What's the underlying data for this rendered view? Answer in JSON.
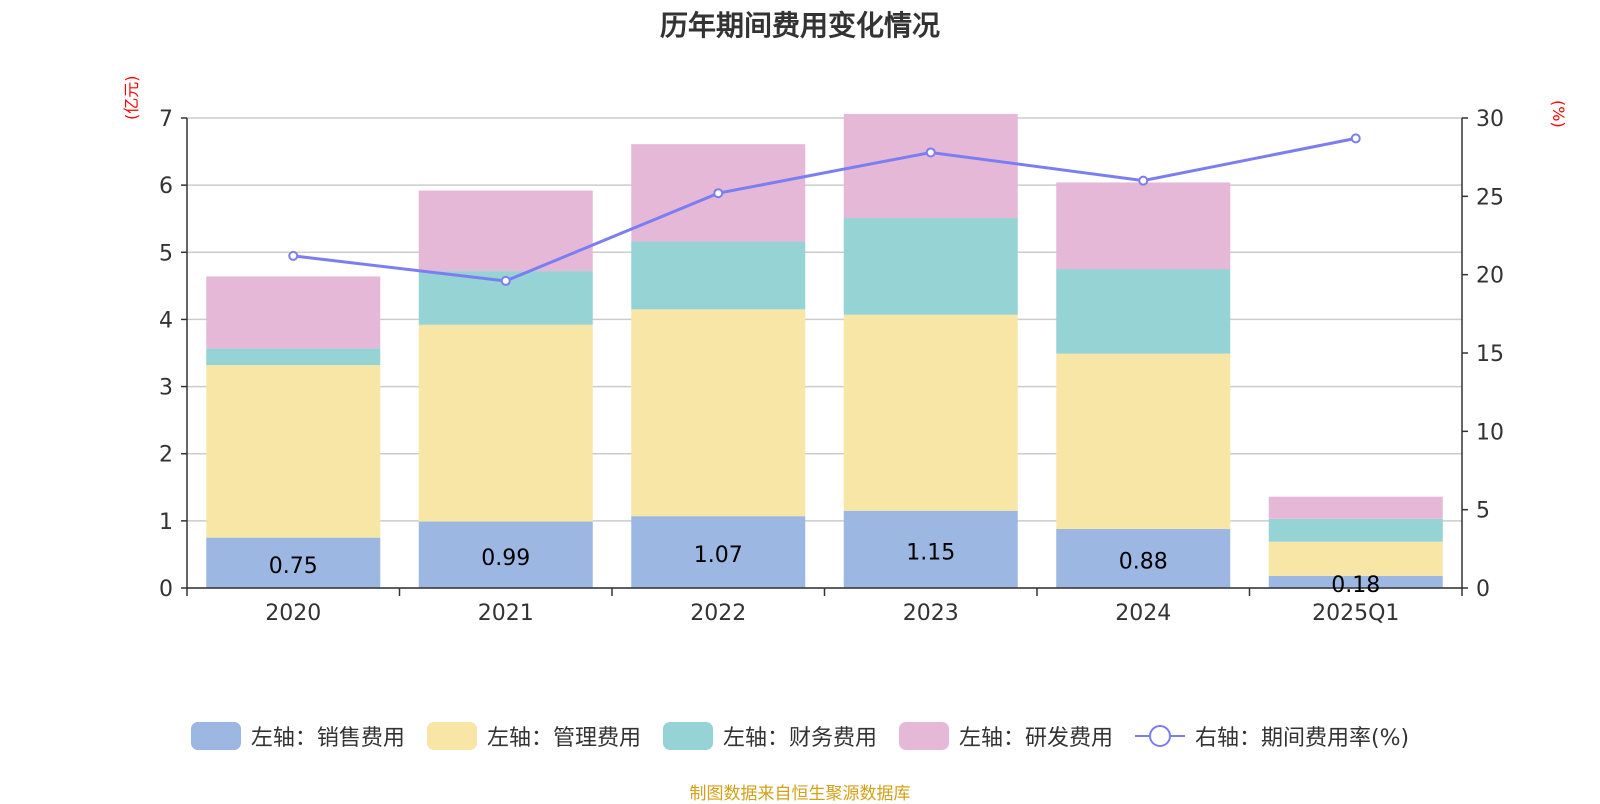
{
  "chart_data": {
    "type": "bar",
    "title": "历年期间费用变化情况",
    "categories": [
      "2020",
      "2021",
      "2022",
      "2023",
      "2024",
      "2025Q1"
    ],
    "series": [
      {
        "name": "左轴：销售费用",
        "axis": "left",
        "color": "#9bb7e2",
        "values": [
          0.75,
          0.99,
          1.07,
          1.15,
          0.88,
          0.18
        ]
      },
      {
        "name": "左轴：管理费用",
        "axis": "left",
        "color": "#f8e6a6",
        "values": [
          2.57,
          2.93,
          3.08,
          2.92,
          2.61,
          0.51
        ]
      },
      {
        "name": "左轴：财务费用",
        "axis": "left",
        "color": "#96d3d4",
        "values": [
          0.25,
          0.8,
          1.01,
          1.44,
          1.26,
          0.34
        ]
      },
      {
        "name": "左轴：研发费用",
        "axis": "left",
        "color": "#e6b8d8",
        "values": [
          1.07,
          1.2,
          1.45,
          1.55,
          1.29,
          0.33
        ]
      },
      {
        "name": "右轴：期间费用率(%)",
        "axis": "right",
        "type": "line",
        "color": "#7b7ef0",
        "values": [
          21.2,
          19.6,
          25.2,
          27.8,
          26.0,
          28.7
        ]
      }
    ],
    "data_labels": [
      "0.75",
      "0.99",
      "1.07",
      "1.15",
      "0.88",
      "0.18"
    ],
    "ylabel_left": "(亿元)",
    "ylabel_right": "(%)",
    "ylim_left": [
      0,
      7
    ],
    "ylim_right": [
      0,
      30
    ],
    "yticks_left": [
      "0",
      "1",
      "2",
      "3",
      "4",
      "5",
      "6",
      "7"
    ],
    "yticks_right": [
      "0",
      "5",
      "10",
      "15",
      "20",
      "25",
      "30"
    ],
    "grid": true,
    "legend_position": "bottom"
  },
  "source": "制图数据来自恒生聚源数据库"
}
